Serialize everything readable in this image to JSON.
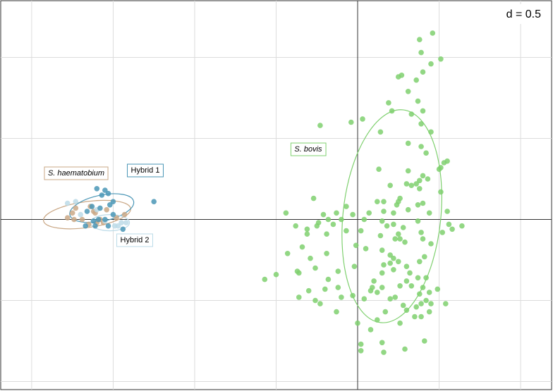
{
  "chart_data": {
    "type": "scatter",
    "scale_label": "d = 0.5",
    "grid": true,
    "xlim": [
      -2.19,
      1.19
    ],
    "ylim": [
      -1.05,
      1.35
    ],
    "grid_step": 0.5,
    "origin_axes": true,
    "colors": {
      "S. haematobium": "#caa886",
      "Hybrid 1": "#4a96b6",
      "Hybrid 2": "#bcdbe8",
      "S. bovis": "#7fd06f",
      "grid": "#dcdcdc",
      "axis": "#333333"
    },
    "series": [
      {
        "name": "S. haematobium",
        "label_style": "italic",
        "points": [
          [
            -1.73,
            0.07
          ],
          [
            -1.75,
            0.04
          ],
          [
            -1.74,
            0.0
          ],
          [
            -1.69,
            0.0
          ],
          [
            -1.61,
            0.04
          ],
          [
            -1.64,
            0.08
          ],
          [
            -1.58,
            0.0
          ],
          [
            -1.65,
            -0.03
          ],
          [
            -1.78,
            0.01
          ],
          [
            -1.56,
            -0.02
          ],
          [
            -1.54,
            0.06
          ],
          [
            -1.48,
            0.01
          ],
          [
            -1.43,
            0.03
          ],
          [
            -1.6,
            -0.02
          ],
          [
            -1.62,
            0.05
          ]
        ],
        "ellipse": {
          "cx": -1.66,
          "cy": 0.03,
          "rx": 0.27,
          "ry": 0.08,
          "angle": -8
        }
      },
      {
        "name": "Hybrid 1",
        "label_style": "normal",
        "points": [
          [
            -1.6,
            0.19
          ],
          [
            -1.55,
            0.18
          ],
          [
            -1.57,
            0.15
          ],
          [
            -1.5,
            0.11
          ],
          [
            -1.52,
            0.09
          ],
          [
            -1.63,
            0.08
          ],
          [
            -1.58,
            0.07
          ],
          [
            -1.66,
            0.05
          ],
          [
            -1.67,
            -0.04
          ],
          [
            -1.61,
            -0.04
          ],
          [
            -1.59,
            0.0
          ],
          [
            -1.53,
            -0.04
          ],
          [
            -1.5,
            0.03
          ],
          [
            -1.55,
            0.0
          ],
          [
            -1.53,
            0.16
          ],
          [
            -1.25,
            0.11
          ],
          [
            -1.62,
            -0.01
          ],
          [
            -1.44,
            -0.06
          ]
        ],
        "ellipse": {
          "cx": -1.57,
          "cy": 0.07,
          "rx": 0.2,
          "ry": 0.08,
          "angle": -12
        }
      },
      {
        "name": "Hybrid 2",
        "label_style": "normal",
        "points": [
          [
            -1.73,
            0.11
          ],
          [
            -1.78,
            0.1
          ],
          [
            -1.49,
            -0.04
          ],
          [
            -1.45,
            -0.02
          ],
          [
            -1.42,
            -0.02
          ],
          [
            -1.47,
            -0.04
          ],
          [
            -1.6,
            0.06
          ],
          [
            -1.55,
            -0.01
          ],
          [
            -1.7,
            0.03
          ]
        ],
        "ellipse": {
          "cx": -1.52,
          "cy": -0.02,
          "rx": 0.12,
          "ry": 0.05,
          "angle": 0
        }
      },
      {
        "name": "S. bovis",
        "label_style": "italic",
        "points": [
          [
            0.38,
            1.11
          ],
          [
            0.46,
            1.15
          ],
          [
            0.39,
            1.03
          ],
          [
            0.51,
            0.99
          ],
          [
            0.45,
            0.96
          ],
          [
            0.4,
            0.91
          ],
          [
            0.27,
            0.89
          ],
          [
            0.25,
            0.88
          ],
          [
            0.36,
            0.86
          ],
          [
            0.31,
            0.79
          ],
          [
            0.37,
            0.73
          ],
          [
            0.19,
            0.72
          ],
          [
            0.4,
            0.67
          ],
          [
            0.03,
            0.62
          ],
          [
            0.21,
            0.67
          ],
          [
            0.33,
            0.65
          ],
          [
            -0.04,
            0.6
          ],
          [
            -0.23,
            0.58
          ],
          [
            0.39,
            0.59
          ],
          [
            0.14,
            0.54
          ],
          [
            0.45,
            0.54
          ],
          [
            0.39,
            0.45
          ],
          [
            0.31,
            0.47
          ],
          [
            0.42,
            0.41
          ],
          [
            0.13,
            0.31
          ],
          [
            0.5,
            0.31
          ],
          [
            0.55,
            0.36
          ],
          [
            0.53,
            0.35
          ],
          [
            0.31,
            0.3
          ],
          [
            0.51,
            0.32
          ],
          [
            0.38,
            0.24
          ],
          [
            0.36,
            0.22
          ],
          [
            0.4,
            0.27
          ],
          [
            0.3,
            0.22
          ],
          [
            0.33,
            0.21
          ],
          [
            0.2,
            0.21
          ],
          [
            0.43,
            0.25
          ],
          [
            0.38,
            0.19
          ],
          [
            0.51,
            0.17
          ],
          [
            0.26,
            0.13
          ],
          [
            0.16,
            0.11
          ],
          [
            0.25,
            0.11
          ],
          [
            0.12,
            0.11
          ],
          [
            0.4,
            0.1
          ],
          [
            0.37,
            0.09
          ],
          [
            0.24,
            0.09
          ],
          [
            0.31,
            0.06
          ],
          [
            0.07,
            0.04
          ],
          [
            0.22,
            0.04
          ],
          [
            0.16,
            0.05
          ],
          [
            0.55,
            0.05
          ],
          [
            0.44,
            0.04
          ],
          [
            0.15,
            -0.01
          ],
          [
            0.37,
            -0.01
          ],
          [
            0.64,
            -0.04
          ],
          [
            0.04,
            0.0
          ],
          [
            0.02,
            -0.07
          ],
          [
            0.18,
            -0.04
          ],
          [
            0.28,
            -0.05
          ],
          [
            0.22,
            -0.03
          ],
          [
            0.25,
            -0.09
          ],
          [
            0.39,
            -0.08
          ],
          [
            0.52,
            -0.08
          ],
          [
            0.14,
            -0.1
          ],
          [
            0.56,
            -0.03
          ],
          [
            0.58,
            -0.06
          ],
          [
            0.29,
            -0.14
          ],
          [
            0.4,
            -0.12
          ],
          [
            0.23,
            -0.12
          ],
          [
            0.26,
            -0.12
          ],
          [
            0.45,
            -0.15
          ],
          [
            0.05,
            -0.18
          ],
          [
            0.15,
            -0.19
          ],
          [
            0.2,
            -0.22
          ],
          [
            0.22,
            -0.24
          ],
          [
            0.3,
            -0.29
          ],
          [
            0.25,
            -0.26
          ],
          [
            0.38,
            -0.26
          ],
          [
            0.2,
            -0.27
          ],
          [
            0.41,
            -0.23
          ],
          [
            0.22,
            -0.31
          ],
          [
            0.16,
            -0.28
          ],
          [
            0.15,
            -0.33
          ],
          [
            0.1,
            -0.38
          ],
          [
            0.32,
            -0.33
          ],
          [
            0.42,
            -0.36
          ],
          [
            0.37,
            -0.36
          ],
          [
            0.09,
            -0.42
          ],
          [
            0.15,
            -0.42
          ],
          [
            0.26,
            -0.41
          ],
          [
            0.3,
            -0.38
          ],
          [
            0.33,
            -0.41
          ],
          [
            0.38,
            -0.46
          ],
          [
            0.4,
            -0.42
          ],
          [
            0.44,
            -0.45
          ],
          [
            0.49,
            -0.43
          ],
          [
            0.54,
            -0.52
          ],
          [
            0.04,
            -0.49
          ],
          [
            0.08,
            -0.44
          ],
          [
            0.12,
            -0.45
          ],
          [
            0.2,
            -0.49
          ],
          [
            0.23,
            -0.48
          ],
          [
            0.28,
            -0.53
          ],
          [
            0.36,
            -0.54
          ],
          [
            0.39,
            -0.52
          ],
          [
            0.42,
            -0.5
          ],
          [
            0.45,
            -0.52
          ],
          [
            0.39,
            -0.6
          ],
          [
            0.35,
            -0.6
          ],
          [
            0.3,
            -0.56
          ],
          [
            0.26,
            -0.64
          ],
          [
            0.17,
            -0.57
          ],
          [
            0.12,
            -0.62
          ],
          [
            0.08,
            -0.68
          ],
          [
            0.0,
            -0.64
          ],
          [
            0.02,
            -0.77
          ],
          [
            0.02,
            -0.81
          ],
          [
            0.15,
            -0.76
          ],
          [
            0.29,
            -0.8
          ],
          [
            0.41,
            -0.75
          ],
          [
            0.44,
            -0.57
          ],
          [
            0.16,
            -0.82
          ],
          [
            -0.12,
            -0.32
          ],
          [
            -0.18,
            -0.37
          ],
          [
            -0.2,
            -0.43
          ],
          [
            -0.26,
            -0.5
          ],
          [
            -0.23,
            -0.52
          ],
          [
            -0.3,
            -0.44
          ],
          [
            -0.36,
            -0.48
          ],
          [
            -0.29,
            -0.24
          ],
          [
            -0.26,
            -0.3
          ],
          [
            -0.12,
            -0.42
          ],
          [
            -0.03,
            -0.47
          ],
          [
            -0.1,
            -0.48
          ],
          [
            -0.13,
            -0.57
          ],
          [
            -0.34,
            -0.17
          ],
          [
            -0.36,
            -0.33
          ],
          [
            -0.37,
            -0.32
          ],
          [
            -0.02,
            -0.29
          ],
          [
            -0.19,
            -0.21
          ],
          [
            -0.01,
            -0.16
          ],
          [
            -0.07,
            -0.07
          ],
          [
            -0.31,
            -0.09
          ],
          [
            -0.03,
            0.03
          ],
          [
            -0.31,
            -0.06
          ],
          [
            -0.25,
            -0.04
          ],
          [
            -0.43,
            -0.21
          ],
          [
            -0.07,
            0.08
          ],
          [
            -0.1,
            0.0
          ],
          [
            -0.15,
            -0.03
          ],
          [
            -0.21,
            0.03
          ],
          [
            -0.5,
            -0.34
          ],
          [
            -0.57,
            -0.37
          ],
          [
            -0.27,
            0.13
          ],
          [
            -0.13,
            0.04
          ],
          [
            -0.18,
            0.0
          ],
          [
            -0.38,
            -0.04
          ],
          [
            -0.44,
            0.04
          ],
          [
            -0.24,
            -0.02
          ],
          [
            -0.19,
            -0.09
          ]
        ],
        "ellipse": {
          "cx": 0.21,
          "cy": 0.02,
          "rx": 0.3,
          "ry": 0.66,
          "angle": 6
        }
      }
    ]
  }
}
